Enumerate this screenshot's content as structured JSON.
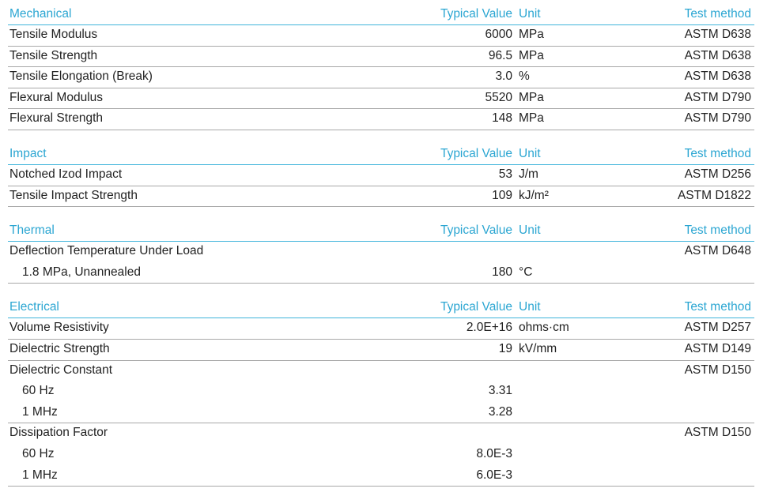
{
  "sections": [
    {
      "title": "Mechanical",
      "value_header": "Typical Value",
      "unit_header": "Unit",
      "method_header": "Test method",
      "rows": [
        {
          "property": "Tensile Modulus",
          "value": "6000",
          "unit": "MPa",
          "method": "ASTM D638"
        },
        {
          "property": "Tensile Strength",
          "value": "96.5",
          "unit": "MPa",
          "method": "ASTM D638"
        },
        {
          "property": "Tensile Elongation (Break)",
          "value": "3.0",
          "unit": "%",
          "method": "ASTM D638"
        },
        {
          "property": "Flexural Modulus",
          "value": "5520",
          "unit": "MPa",
          "method": "ASTM D790"
        },
        {
          "property": "Flexural Strength",
          "value": "148",
          "unit": "MPa",
          "method": "ASTM D790"
        }
      ]
    },
    {
      "title": "Impact",
      "value_header": "Typical Value",
      "unit_header": "Unit",
      "method_header": "Test method",
      "rows": [
        {
          "property": "Notched Izod Impact",
          "value": "53",
          "unit": "J/m",
          "method": "ASTM D256"
        },
        {
          "property": "Tensile Impact Strength",
          "value": "109",
          "unit": "kJ/m²",
          "method": "ASTM D1822"
        }
      ]
    },
    {
      "title": "Thermal",
      "value_header": "Typical Value",
      "unit_header": "Unit",
      "method_header": "Test method",
      "rows": [
        {
          "property": "Deflection Temperature Under Load",
          "method": "ASTM D648",
          "sub": [
            {
              "property": "1.8 MPa, Unannealed",
              "value": "180",
              "unit": "°C"
            }
          ]
        }
      ]
    },
    {
      "title": "Electrical",
      "value_header": "Typical Value",
      "unit_header": "Unit",
      "method_header": "Test method",
      "rows": [
        {
          "property": "Volume Resistivity",
          "value": "2.0E+16",
          "unit": "ohms·cm",
          "method": "ASTM D257"
        },
        {
          "property": "Dielectric Strength",
          "value": "19",
          "unit": "kV/mm",
          "method": "ASTM D149"
        },
        {
          "property": "Dielectric Constant",
          "method": "ASTM D150",
          "sub": [
            {
              "property": "60 Hz",
              "value": "3.31"
            },
            {
              "property": "1 MHz",
              "value": "3.28"
            }
          ]
        },
        {
          "property": "Dissipation Factor",
          "method": "ASTM D150",
          "sub": [
            {
              "property": "60 Hz",
              "value": "8.0E-3"
            },
            {
              "property": "1 MHz",
              "value": "6.0E-3"
            }
          ]
        }
      ]
    }
  ]
}
